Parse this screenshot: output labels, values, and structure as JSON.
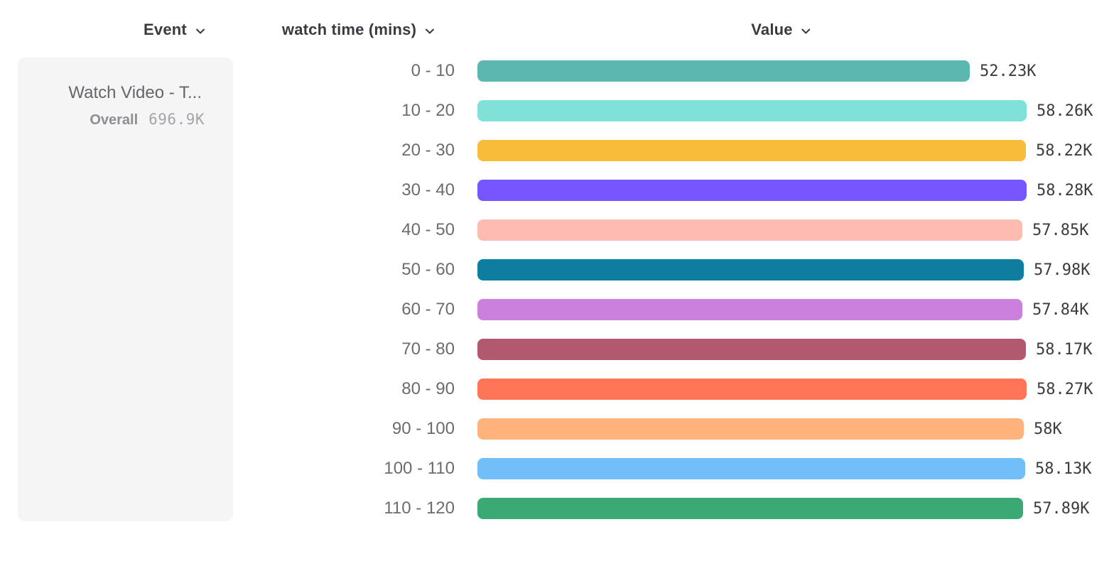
{
  "header": {
    "columns": [
      {
        "label": "Event",
        "icon": "chevron-down-icon"
      },
      {
        "label": "watch time (mins)",
        "icon": "chevron-down-icon"
      },
      {
        "label": "Value",
        "icon": "chevron-down-icon"
      }
    ]
  },
  "event_card": {
    "title": "Watch Video - T...",
    "overall_label": "Overall",
    "overall_value": "696.9K"
  },
  "chart_data": {
    "type": "bar",
    "orientation": "horizontal",
    "title": "",
    "xlabel": "watch time (mins)",
    "ylabel": "Value",
    "value_axis_min": 0,
    "value_axis_max": 58280,
    "grid": false,
    "legend": false,
    "categories": [
      "0 - 10",
      "10 - 20",
      "20 - 30",
      "30 - 40",
      "40 - 50",
      "50 - 60",
      "60 - 70",
      "70 - 80",
      "80 - 90",
      "90 - 100",
      "100 - 110",
      "110 - 120"
    ],
    "values": [
      52230,
      58260,
      58220,
      58280,
      57850,
      57980,
      57840,
      58170,
      58270,
      58000,
      58130,
      57890
    ],
    "value_labels": [
      "52.23K",
      "58.26K",
      "58.22K",
      "58.28K",
      "57.85K",
      "57.98K",
      "57.84K",
      "58.17K",
      "58.27K",
      "58K",
      "58.13K",
      "57.89K"
    ],
    "bar_colors": [
      "#5BB7AF",
      "#80E1D9",
      "#F8BC3B",
      "#7856FF",
      "#FEBBB2",
      "#0D7EA0",
      "#CA80DC",
      "#B2596E",
      "#FF7557",
      "#FFB27A",
      "#72BEF8",
      "#3BA974"
    ]
  },
  "colors": {
    "background": "#ffffff",
    "card_background": "#f5f5f6",
    "header_text": "#3a3a40",
    "bucket_label_text": "#6b6b72",
    "value_text": "#3b3b42",
    "card_title_text": "#65656b",
    "overall_label_text": "#8d8d93",
    "overall_value_text": "#a4a4aa"
  }
}
